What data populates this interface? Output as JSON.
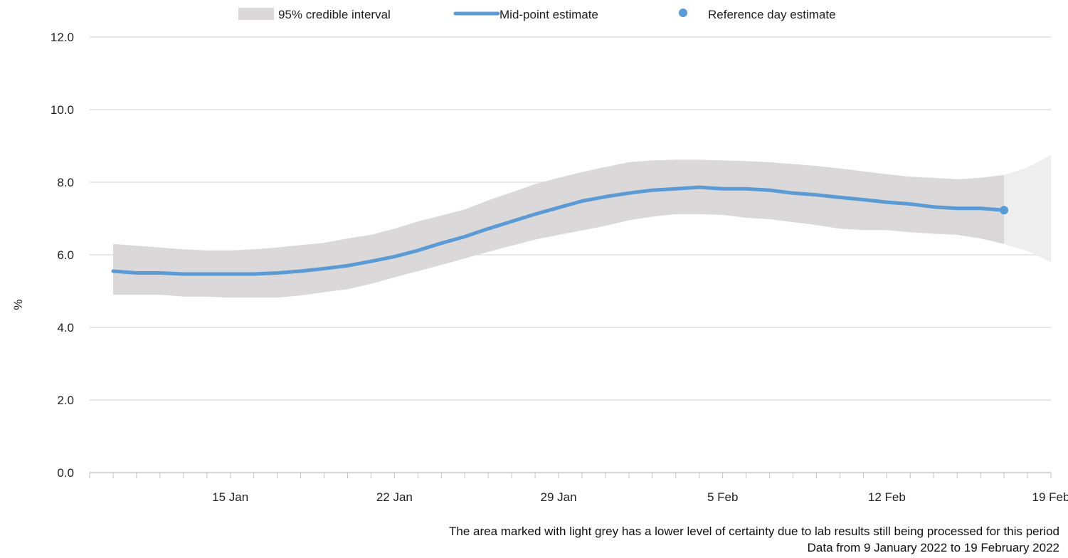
{
  "chart_data": {
    "type": "area",
    "ylabel": "%",
    "ylim": [
      0,
      12
    ],
    "yticks": [
      "0.0",
      "2.0",
      "4.0",
      "6.0",
      "8.0",
      "10.0",
      "12.0"
    ],
    "xlim": [
      "2022-01-09",
      "2022-02-19"
    ],
    "xticks": [
      {
        "date": "2022-01-15",
        "label": "15 Jan"
      },
      {
        "date": "2022-01-22",
        "label": "22 Jan"
      },
      {
        "date": "2022-01-29",
        "label": "29 Jan"
      },
      {
        "date": "2022-02-05",
        "label": "5 Feb"
      },
      {
        "date": "2022-02-12",
        "label": "12 Feb"
      },
      {
        "date": "2022-02-19",
        "label": "19 Feb"
      }
    ],
    "grid": true,
    "legend": {
      "placement": "top",
      "entries": [
        {
          "label": "95% credible interval",
          "marker": "band"
        },
        {
          "label": "Mid-point estimate",
          "marker": "line"
        },
        {
          "label": "Reference day estimate",
          "marker": "dot"
        }
      ]
    },
    "colors": {
      "interval": "#dad8d9",
      "uncertain_interval": "#eeeeee",
      "midpoint": "#5b9bd5",
      "reference": "#5b9bd5",
      "grid": "#d9d9d9"
    },
    "series": [
      {
        "name": "Mid-point estimate",
        "x": [
          "2022-01-10",
          "2022-01-11",
          "2022-01-12",
          "2022-01-13",
          "2022-01-14",
          "2022-01-15",
          "2022-01-16",
          "2022-01-17",
          "2022-01-18",
          "2022-01-19",
          "2022-01-20",
          "2022-01-21",
          "2022-01-22",
          "2022-01-23",
          "2022-01-24",
          "2022-01-25",
          "2022-01-26",
          "2022-01-27",
          "2022-01-28",
          "2022-01-29",
          "2022-01-30",
          "2022-01-31",
          "2022-02-01",
          "2022-02-02",
          "2022-02-03",
          "2022-02-04",
          "2022-02-05",
          "2022-02-06",
          "2022-02-07",
          "2022-02-08",
          "2022-02-09",
          "2022-02-10",
          "2022-02-11",
          "2022-02-12",
          "2022-02-13",
          "2022-02-14",
          "2022-02-15",
          "2022-02-16",
          "2022-02-17"
        ],
        "values": [
          5.55,
          5.5,
          5.5,
          5.47,
          5.47,
          5.47,
          5.47,
          5.5,
          5.55,
          5.62,
          5.7,
          5.82,
          5.95,
          6.12,
          6.32,
          6.5,
          6.72,
          6.92,
          7.12,
          7.3,
          7.48,
          7.6,
          7.7,
          7.78,
          7.82,
          7.86,
          7.82,
          7.82,
          7.78,
          7.7,
          7.65,
          7.58,
          7.52,
          7.45,
          7.4,
          7.32,
          7.28,
          7.28,
          7.23
        ]
      },
      {
        "name": "95% credible interval",
        "x": [
          "2022-01-10",
          "2022-01-11",
          "2022-01-12",
          "2022-01-13",
          "2022-01-14",
          "2022-01-15",
          "2022-01-16",
          "2022-01-17",
          "2022-01-18",
          "2022-01-19",
          "2022-01-20",
          "2022-01-21",
          "2022-01-22",
          "2022-01-23",
          "2022-01-24",
          "2022-01-25",
          "2022-01-26",
          "2022-01-27",
          "2022-01-28",
          "2022-01-29",
          "2022-01-30",
          "2022-01-31",
          "2022-02-01",
          "2022-02-02",
          "2022-02-03",
          "2022-02-04",
          "2022-02-05",
          "2022-02-06",
          "2022-02-07",
          "2022-02-08",
          "2022-02-09",
          "2022-02-10",
          "2022-02-11",
          "2022-02-12",
          "2022-02-13",
          "2022-02-14",
          "2022-02-15",
          "2022-02-16",
          "2022-02-17"
        ],
        "lower": [
          4.9,
          4.9,
          4.9,
          4.85,
          4.85,
          4.82,
          4.82,
          4.82,
          4.88,
          4.97,
          5.05,
          5.2,
          5.38,
          5.55,
          5.72,
          5.9,
          6.08,
          6.25,
          6.42,
          6.55,
          6.67,
          6.8,
          6.95,
          7.05,
          7.12,
          7.12,
          7.1,
          7.02,
          6.98,
          6.9,
          6.82,
          6.72,
          6.68,
          6.68,
          6.62,
          6.58,
          6.55,
          6.45,
          6.3
        ],
        "upper": [
          6.3,
          6.25,
          6.2,
          6.15,
          6.12,
          6.12,
          6.15,
          6.2,
          6.27,
          6.33,
          6.45,
          6.55,
          6.72,
          6.92,
          7.08,
          7.25,
          7.5,
          7.72,
          7.95,
          8.12,
          8.28,
          8.42,
          8.55,
          8.6,
          8.62,
          8.62,
          8.6,
          8.58,
          8.55,
          8.5,
          8.45,
          8.38,
          8.3,
          8.22,
          8.15,
          8.12,
          8.08,
          8.12,
          8.2
        ]
      },
      {
        "name": "Uncertain period (light grey)",
        "x": [
          "2022-02-17",
          "2022-02-18",
          "2022-02-19"
        ],
        "lower": [
          6.3,
          6.1,
          5.8
        ],
        "upper": [
          8.2,
          8.4,
          8.75
        ]
      },
      {
        "name": "Reference day estimate",
        "x": [
          "2022-02-17"
        ],
        "values": [
          7.23
        ]
      }
    ],
    "annotations": [
      "The area marked with light grey has a lower level of certainty due to lab results still being processed for this period",
      "Data from 9 January 2022 to 19 February 2022"
    ]
  }
}
